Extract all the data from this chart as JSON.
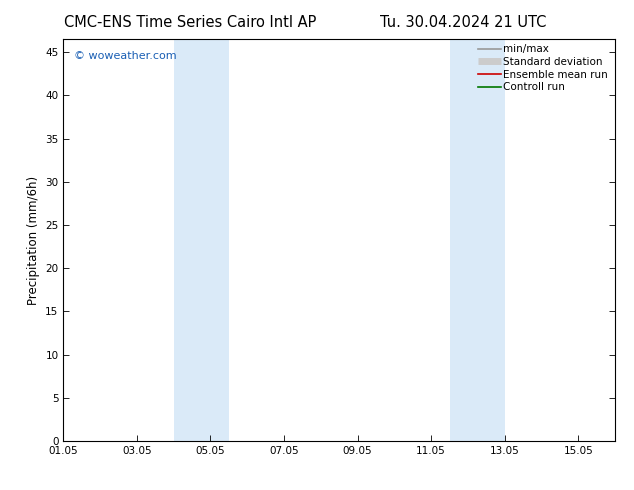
{
  "title_left": "CMC-ENS Time Series Cairo Intl AP",
  "title_right": "Tu. 30.04.2024 21 UTC",
  "ylabel": "Precipitation (mm/6h)",
  "xlim": [
    1.05,
    16.05
  ],
  "ylim": [
    0,
    46.5
  ],
  "yticks": [
    0,
    5,
    10,
    15,
    20,
    25,
    30,
    35,
    40,
    45
  ],
  "xtick_labels": [
    "01.05",
    "03.05",
    "05.05",
    "07.05",
    "09.05",
    "11.05",
    "13.05",
    "15.05"
  ],
  "xtick_positions": [
    1.05,
    3.05,
    5.05,
    7.05,
    9.05,
    11.05,
    13.05,
    15.05
  ],
  "shaded_bands": [
    {
      "xmin": 4.05,
      "xmax": 5.55
    },
    {
      "xmin": 11.55,
      "xmax": 13.05
    }
  ],
  "band_color": "#daeaf8",
  "background_color": "#ffffff",
  "watermark": "© woweather.com",
  "watermark_color": "#1a5fb4",
  "legend_items": [
    {
      "label": "min/max",
      "color": "#999999",
      "lw": 1.2,
      "style": "-"
    },
    {
      "label": "Standard deviation",
      "color": "#cccccc",
      "lw": 5,
      "style": "-"
    },
    {
      "label": "Ensemble mean run",
      "color": "#cc0000",
      "lw": 1.2,
      "style": "-"
    },
    {
      "label": "Controll run",
      "color": "#007700",
      "lw": 1.2,
      "style": "-"
    }
  ],
  "title_fontsize": 10.5,
  "ylabel_fontsize": 8.5,
  "tick_fontsize": 7.5,
  "legend_fontsize": 7.5,
  "watermark_fontsize": 8
}
